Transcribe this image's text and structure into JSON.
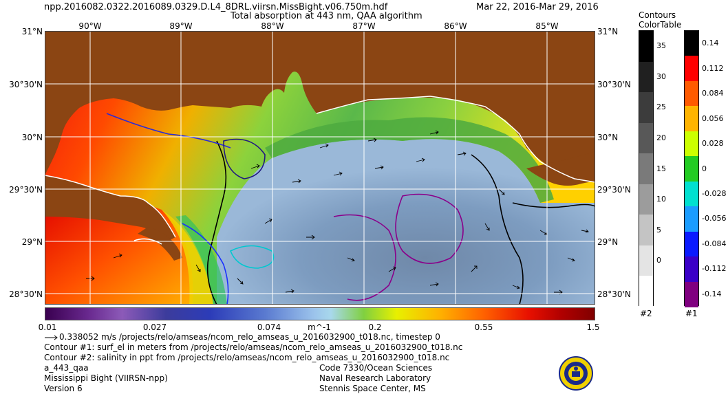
{
  "header": {
    "filename": "npp.2016082.0322.2016089.0329.D.L4_8DRL.viirsn.MissBight.v06.750m.hdf",
    "title": "Total absorption at 443 nm, QAA algorithm",
    "date_range": "Mar 22, 2016-Mar 29, 2016"
  },
  "axes": {
    "lon_labels": [
      "90°W",
      "89°W",
      "88°W",
      "87°W",
      "86°W",
      "85°W"
    ],
    "lat_labels": [
      "31°N",
      "30°30'N",
      "30°N",
      "29°30'N",
      "29°N",
      "28°30'N"
    ]
  },
  "colorbar": {
    "labels": [
      "0.01",
      "0.027",
      "0.074",
      "m^-1",
      "0.2",
      "0.55",
      "1.5"
    ]
  },
  "legend_contours": {
    "title_line1": "Contours",
    "title_line2": "ColorTable",
    "label_bottom": "#2",
    "ticks": [
      "35",
      "30",
      "25",
      "20",
      "15",
      "10",
      "5",
      "0"
    ],
    "colors": [
      "#000000",
      "#202020",
      "#3c3c3c",
      "#585858",
      "#7a7a7a",
      "#9c9c9c",
      "#c4c4c4",
      "#e4e4e4",
      "#ffffff"
    ]
  },
  "legend_colortable": {
    "label_bottom": "#1",
    "ticks": [
      "0.14",
      "0.112",
      "0.084",
      "0.056",
      "0.028",
      "0",
      "-0.028",
      "-0.056",
      "-0.084",
      "-0.112",
      "-0.14"
    ],
    "colors": [
      "#000000",
      "#ff0000",
      "#ff5a00",
      "#ffb400",
      "#ccff00",
      "#22cc22",
      "#00e0d0",
      "#1a9cff",
      "#0a1aff",
      "#3a00c8",
      "#800080"
    ]
  },
  "footer": {
    "vector_line": "0.338052 m/s /projects/relo/amseas/ncom_relo_amseas_u_2016032900_t018.nc, timestep 0",
    "contour1_line": "Contour #1: surf_el in meters from /projects/relo/amseas/ncom_relo_amseas_u_2016032900_t018.nc",
    "contour2_line": "Contour #2: salinity in ppt from /projects/relo/amseas/ncom_relo_amseas_u_2016032900_t018.nc",
    "product": "a_443_qaa",
    "region": "Mississippi Bight (VIIRSN-npp)",
    "version": "Version 6",
    "org_code": "Code 7330/Ocean Sciences",
    "org_name": "Naval Research Laboratory",
    "org_place": "Stennis Space Center, MS"
  },
  "colors": {
    "land": "#8b4513",
    "coast": "#ffffff",
    "grid": "#ffffff",
    "vector_arrow": "#000000"
  }
}
